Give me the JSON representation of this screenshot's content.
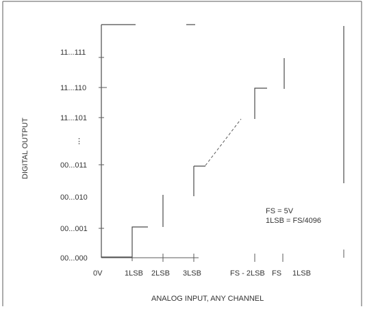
{
  "axes": {
    "ylabel": "DIGITAL OUTPUT",
    "xlabel": "ANALOG INPUT, ANY CHANNEL",
    "y_codes": [
      "11...111",
      "11...110",
      "11...101",
      "00...011",
      "00...010",
      "00...001",
      "00...000"
    ],
    "x_labels": [
      "0V",
      "1LSB",
      "2LSB",
      "3LSB",
      "FS - 2LSB",
      "FS",
      "1LSB"
    ]
  },
  "notes": {
    "fs": "FS = 5V",
    "lsb": "1LSB = FS/4096"
  },
  "colors": {
    "line": "#4a4a4a",
    "text": "#333333",
    "background": "#ffffff"
  }
}
